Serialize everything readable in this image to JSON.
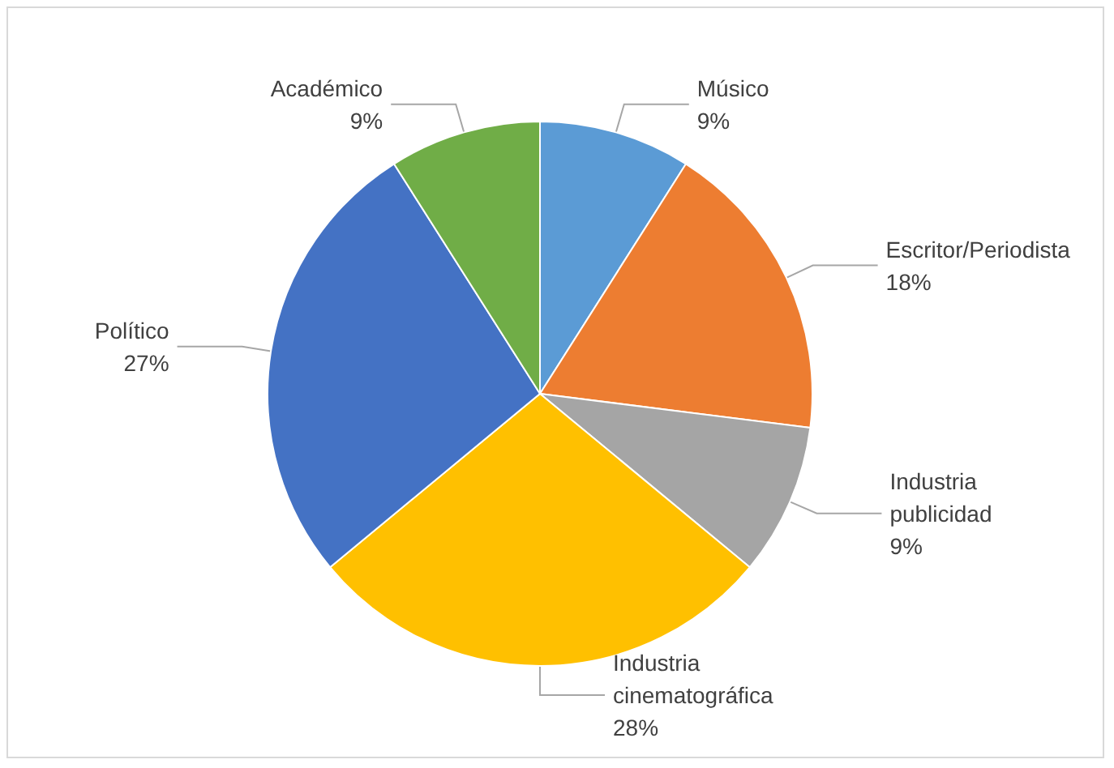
{
  "chart_data": {
    "type": "pie",
    "categories": [
      "Músico",
      "Escritor/Periodista",
      "Industria publicidad",
      "Industria cinematográfica",
      "Político",
      "Académico"
    ],
    "values": [
      9,
      18,
      9,
      28,
      27,
      9
    ],
    "colors": [
      "#5b9bd5",
      "#ed7d31",
      "#a5a5a5",
      "#ffc000",
      "#4472c4",
      "#70ad47"
    ],
    "value_labels": [
      "9%",
      "18%",
      "9%",
      "28%",
      "27%",
      "9%"
    ],
    "legend": false
  }
}
